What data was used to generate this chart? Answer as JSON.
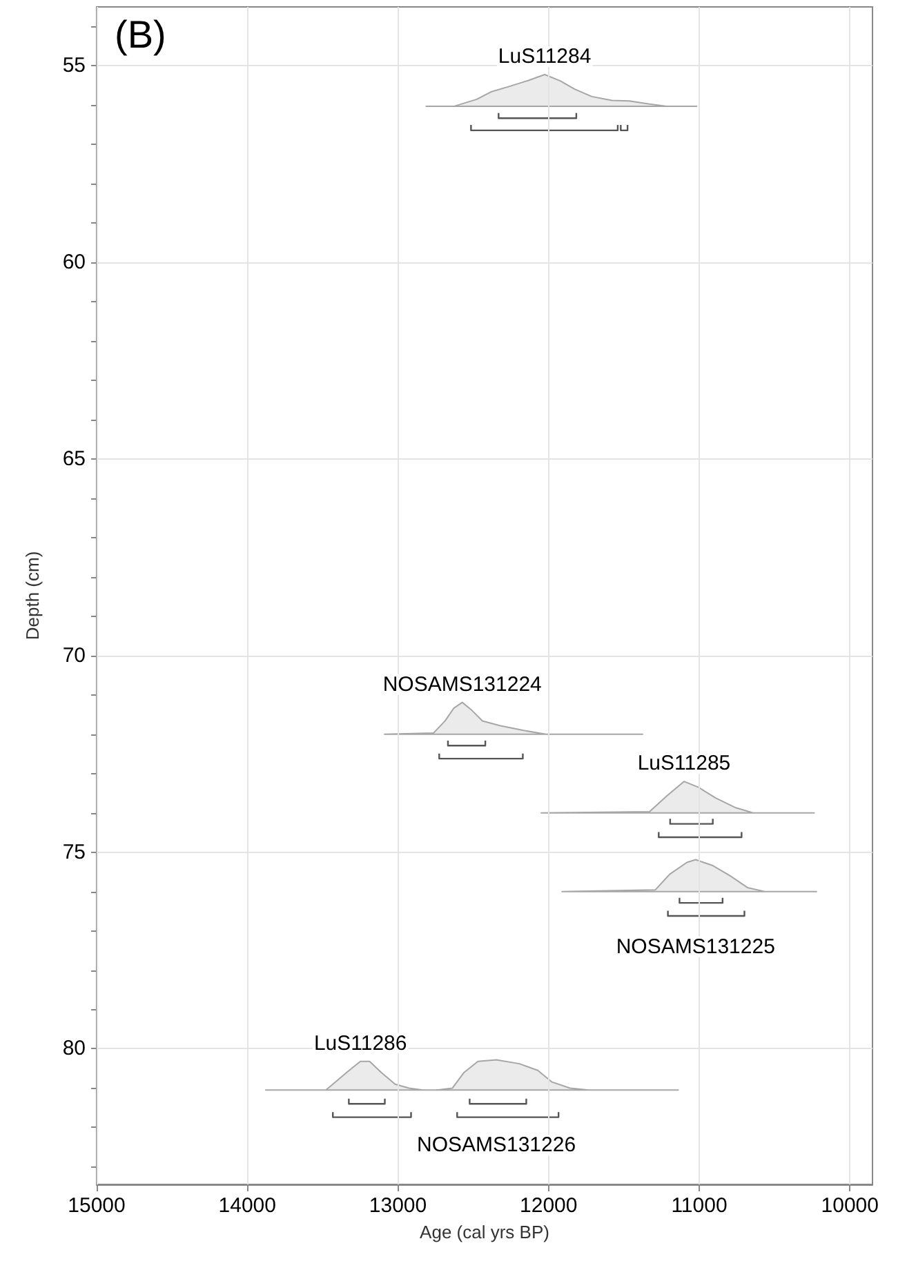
{
  "chart_data": {
    "type": "area",
    "title": "(B)",
    "xlabel": "Age (cal yrs BP)",
    "ylabel": "Depth (cm)",
    "xlim": [
      15000,
      9850
    ],
    "xticks": [
      15000,
      14000,
      13000,
      12000,
      11000,
      10000
    ],
    "ylim": [
      83.45,
      53.5
    ],
    "yticks": [
      {
        "value": 54,
        "label": null
      },
      55,
      {
        "value": 56,
        "label": null
      },
      {
        "value": 57,
        "label": null
      },
      {
        "value": 58,
        "label": null
      },
      {
        "value": 59,
        "label": null
      },
      60,
      {
        "value": 61,
        "label": null
      },
      {
        "value": 62,
        "label": null
      },
      {
        "value": 63,
        "label": null
      },
      {
        "value": 64,
        "label": null
      },
      65,
      {
        "value": 66,
        "label": null
      },
      {
        "value": 67,
        "label": null
      },
      {
        "value": 68,
        "label": null
      },
      {
        "value": 69,
        "label": null
      },
      70,
      {
        "value": 71,
        "label": null
      },
      {
        "value": 72,
        "label": null
      },
      {
        "value": 73,
        "label": null
      },
      {
        "value": 74,
        "label": null
      },
      75,
      {
        "value": 76,
        "label": null
      },
      {
        "value": 77,
        "label": null
      },
      {
        "value": 78,
        "label": null
      },
      {
        "value": 79,
        "label": null
      },
      80,
      {
        "value": 81,
        "label": null
      },
      {
        "value": 82,
        "label": null
      },
      {
        "value": 83,
        "label": null
      }
    ],
    "grid": true,
    "series": [
      {
        "name": "LuS11284",
        "color": "#a6a6a6",
        "x": [
          12813,
          12630,
          12477,
          12382,
          12267,
          12133,
          12026,
          11923,
          11827,
          11713,
          11579,
          11464,
          11330,
          11216,
          11017
        ],
        "values": [
          56.03,
          56.03,
          55.85,
          55.66,
          55.53,
          55.37,
          55.22,
          55.38,
          55.59,
          55.78,
          55.88,
          55.89,
          55.97,
          56.03,
          56.03
        ]
      },
      {
        "name": "NOSAMS131224",
        "color": "#a6a6a6",
        "x": [
          13089,
          12764,
          12687,
          12630,
          12573,
          12515,
          12439,
          12324,
          12171,
          12018,
          11376
        ],
        "values": [
          72.0,
          71.97,
          71.66,
          71.34,
          71.19,
          71.37,
          71.66,
          71.78,
          71.9,
          72.0,
          72.0
        ]
      },
      {
        "name": "LuS11285",
        "color": "#a6a6a6",
        "x": [
          12049,
          11330,
          11216,
          11101,
          11005,
          10891,
          10757,
          10642,
          10237
        ],
        "values": [
          74.0,
          73.97,
          73.57,
          73.2,
          73.35,
          73.62,
          73.87,
          74.0,
          74.0
        ]
      },
      {
        "name": "NOSAMS131225",
        "color": "#a6a6a6",
        "x": [
          11911,
          11292,
          11196,
          11082,
          11024,
          10910,
          10795,
          10680,
          10566,
          10222
        ],
        "values": [
          76.0,
          75.96,
          75.56,
          75.26,
          75.19,
          75.34,
          75.6,
          75.9,
          76.0,
          76.0
        ]
      },
      {
        "name": "LuS11286",
        "color": "#a6a6a6",
        "x": [
          13878,
          13478,
          13340,
          13249,
          13188,
          13111,
          13019,
          12927,
          12836,
          12740
        ],
        "values": [
          81.05,
          81.05,
          80.6,
          80.32,
          80.32,
          80.6,
          80.9,
          81.0,
          81.05,
          81.05
        ]
      },
      {
        "name": "NOSAMS131226",
        "color": "#a6a6a6",
        "x": [
          12740,
          12638,
          12561,
          12469,
          12347,
          12194,
          12072,
          11980,
          11858,
          11735,
          11139
        ],
        "values": [
          81.05,
          81.0,
          80.6,
          80.32,
          80.28,
          80.38,
          80.55,
          80.84,
          81.0,
          81.05,
          81.05
        ]
      },
      {
        "type": "line",
        "color": "#555555",
        "x": [
          12332,
          12332,
          11816,
          11816,
          null,
          12515,
          12515,
          11541,
          11541,
          null,
          11521,
          11521,
          11476,
          11476,
          null,
          12668,
          12668,
          12420,
          12420,
          null,
          12726,
          12726,
          12171,
          12171,
          null,
          11193,
          11193,
          10910,
          10910,
          null,
          11269,
          11269,
          10719,
          10719,
          null,
          11131,
          11131,
          10845,
          10845,
          null,
          11208,
          11208,
          10700,
          10700,
          null,
          13326,
          13326,
          13087,
          13087,
          null,
          13432,
          13432,
          12913,
          12913,
          null,
          12524,
          12524,
          12148,
          12148,
          null,
          12607,
          12607,
          11934,
          11934
        ],
        "values": [
          56.2,
          56.33,
          56.33,
          56.2,
          null,
          56.5,
          56.64,
          56.64,
          56.5,
          null,
          56.5,
          56.64,
          56.64,
          56.5,
          null,
          72.16,
          72.29,
          72.29,
          72.16,
          null,
          72.49,
          72.62,
          72.62,
          72.49,
          null,
          74.15,
          74.28,
          74.28,
          74.15,
          null,
          74.49,
          74.62,
          74.62,
          74.49,
          null,
          76.16,
          76.29,
          76.29,
          76.16,
          null,
          76.49,
          76.62,
          76.62,
          76.49,
          null,
          81.27,
          81.4,
          81.4,
          81.27,
          null,
          81.61,
          81.74,
          81.74,
          81.61,
          null,
          81.27,
          81.4,
          81.4,
          81.27,
          null,
          81.61,
          81.74,
          81.74,
          81.61
        ]
      }
    ]
  }
}
